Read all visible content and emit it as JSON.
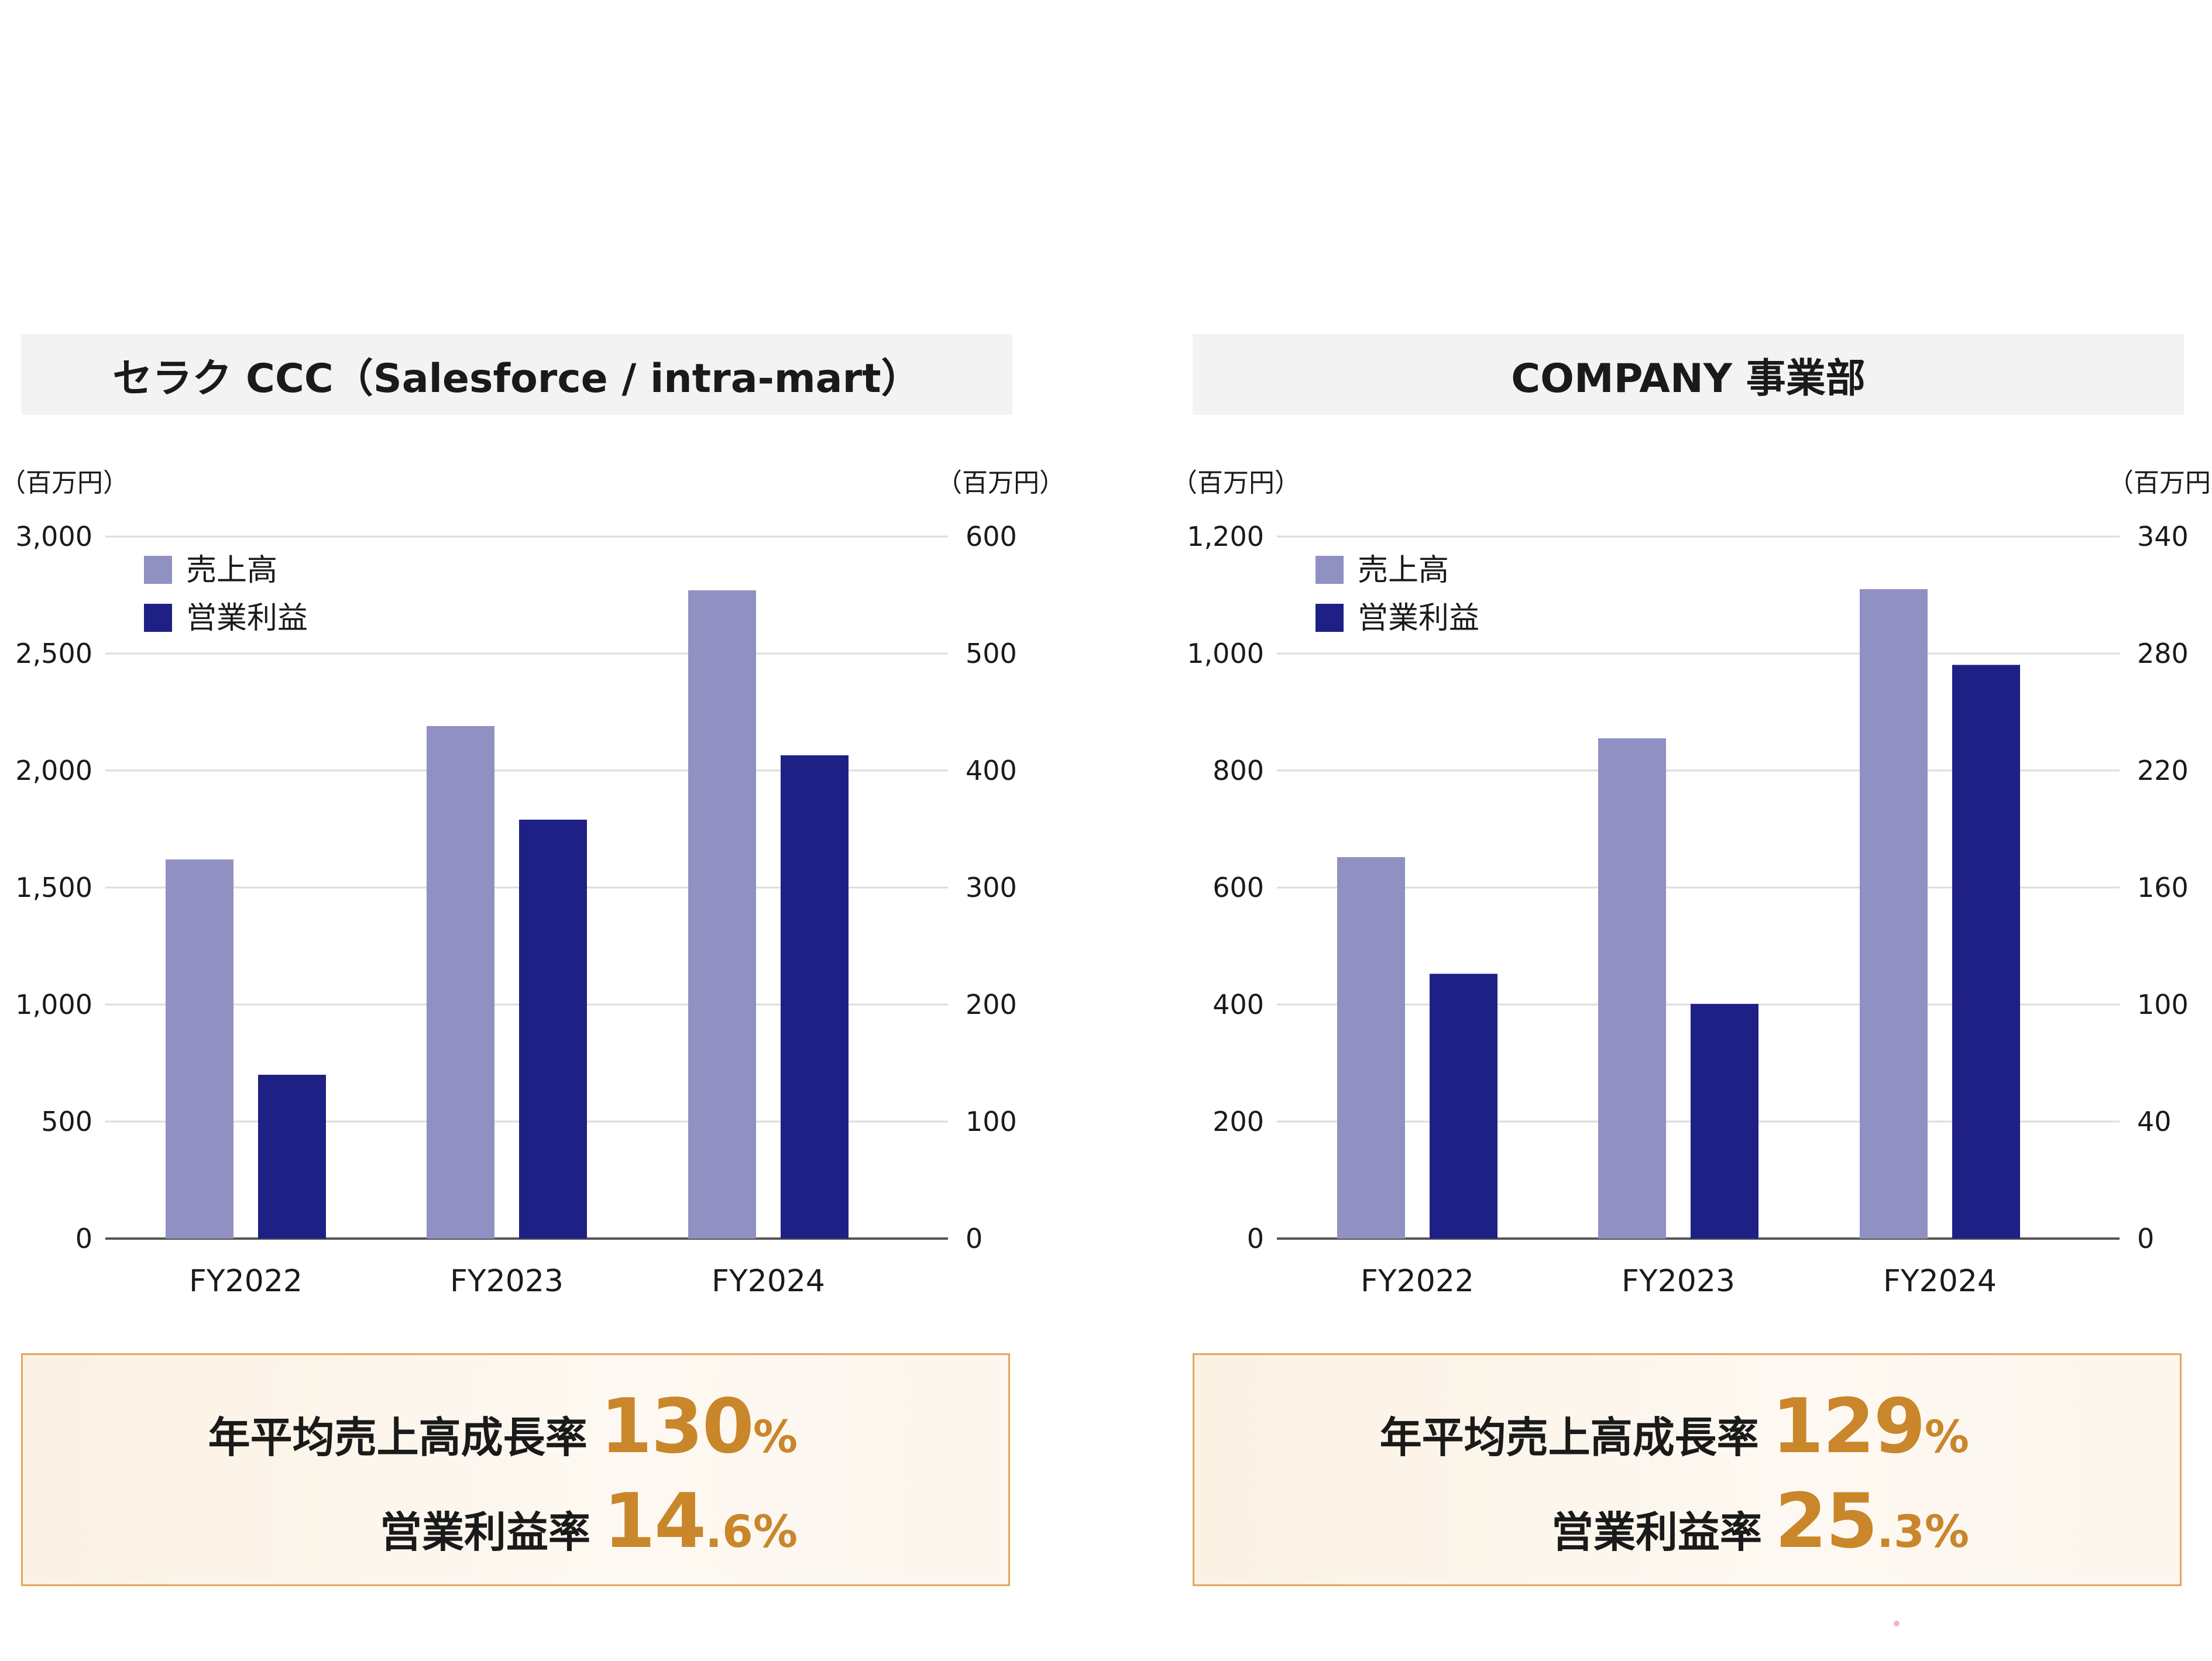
{
  "colors": {
    "sales": "#9090c2",
    "profit": "#1e2085",
    "accent": "#c9862a",
    "box_border": "#e3a65a"
  },
  "panels": [
    {
      "title": "セラク CCC（Salesforce / intra-mart）",
      "summary": {
        "label1": "年平均売上高成長率",
        "big1": "130",
        "small1": "%",
        "label2": "営業利益率",
        "big2": "14",
        "small2": ".6%"
      }
    },
    {
      "title": "COMPANY 事業部",
      "summary": {
        "label1": "年平均売上高成長率",
        "big1": "129",
        "small1": "%",
        "label2": "営業利益率",
        "big2": "25",
        "small2": ".3%"
      }
    }
  ],
  "chart_data": [
    {
      "type": "bar",
      "left_unit": "（百万円）",
      "right_unit": "（百万円）",
      "categories": [
        "FY2022",
        "FY2023",
        "FY2024"
      ],
      "series": [
        {
          "name": "売上高",
          "axis": "left",
          "values": [
            1620,
            2190,
            2770
          ]
        },
        {
          "name": "営業利益",
          "axis": "right",
          "values": [
            140,
            358,
            413
          ]
        }
      ],
      "left_ticks": [
        "0",
        "500",
        "1,000",
        "1,500",
        "2,000",
        "2,500",
        "3,000"
      ],
      "left_ylim": [
        0,
        3000
      ],
      "right_ticks": [
        "0",
        "100",
        "200",
        "300",
        "400",
        "500",
        "600"
      ],
      "right_ylim": [
        0,
        600
      ],
      "grid": true,
      "legend": "top-left"
    },
    {
      "type": "bar",
      "left_unit": "（百万円）",
      "right_unit": "（百万円）",
      "categories": [
        "FY2022",
        "FY2023",
        "FY2024"
      ],
      "series": [
        {
          "name": "売上高",
          "axis": "left",
          "values": [
            652,
            855,
            1110
          ]
        },
        {
          "name": "営業利益",
          "axis": "right",
          "values": [
            132,
            117,
            286
          ]
        }
      ],
      "left_ticks": [
        "0",
        "200",
        "400",
        "600",
        "800",
        "1,000",
        "1,200"
      ],
      "left_ylim": [
        0,
        1200
      ],
      "right_ticks": [
        "0",
        "40",
        "100",
        "160",
        "220",
        "280",
        "340"
      ],
      "right_ylim": [
        0,
        350
      ],
      "grid": true,
      "legend": "top-left"
    }
  ]
}
